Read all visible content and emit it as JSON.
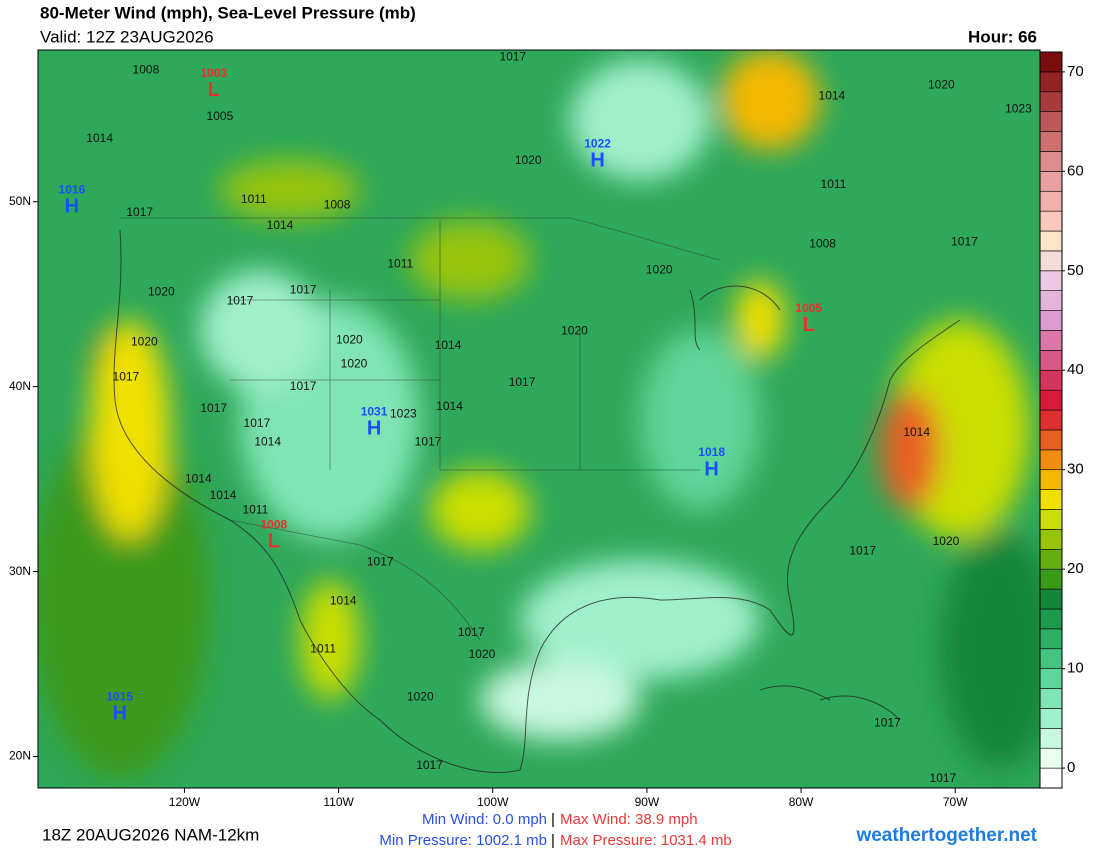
{
  "header": {
    "title": "80-Meter Wind (mph), Sea-Level Pressure (mb)",
    "valid": "Valid: 12Z 23AUG2026",
    "hour": "Hour: 66"
  },
  "map": {
    "xlim": [
      -129.5,
      -64.5
    ],
    "ylim": [
      18.3,
      58.2
    ],
    "xticks": [
      {
        "value": -120,
        "label": "120W"
      },
      {
        "value": -110,
        "label": "110W"
      },
      {
        "value": -100,
        "label": "100W"
      },
      {
        "value": -90,
        "label": "90W"
      },
      {
        "value": -80,
        "label": "80W"
      },
      {
        "value": -70,
        "label": "70W"
      }
    ],
    "yticks": [
      {
        "value": 20,
        "label": "20N"
      },
      {
        "value": 30,
        "label": "30N"
      },
      {
        "value": 40,
        "label": "40N"
      },
      {
        "value": 50,
        "label": "50N"
      }
    ],
    "pressure_centers": [
      {
        "symbol": "L",
        "value": "1003",
        "lon": -118.1,
        "lat": 56.1
      },
      {
        "symbol": "H",
        "value": "1022",
        "lon": -93.2,
        "lat": 52.3
      },
      {
        "symbol": "H",
        "value": "1016",
        "lon": -127.3,
        "lat": 49.8
      },
      {
        "symbol": "H",
        "value": "1031",
        "lon": -107.7,
        "lat": 37.8
      },
      {
        "symbol": "H",
        "value": "1018",
        "lon": -85.8,
        "lat": 35.6
      },
      {
        "symbol": "L",
        "value": "1005",
        "lon": -79.5,
        "lat": 43.4
      },
      {
        "symbol": "L",
        "value": "1008",
        "lon": -114.2,
        "lat": 31.7
      },
      {
        "symbol": "H",
        "value": "1015",
        "lon": -124.2,
        "lat": 22.4
      }
    ],
    "isobar_labels": [
      {
        "value": "1008",
        "lon": -122.5,
        "lat": 57.1
      },
      {
        "value": "1005",
        "lon": -117.7,
        "lat": 54.6
      },
      {
        "value": "1014",
        "lon": -125.5,
        "lat": 53.4
      },
      {
        "value": "1017",
        "lon": -98.7,
        "lat": 57.8
      },
      {
        "value": "1014",
        "lon": -78.0,
        "lat": 55.7
      },
      {
        "value": "1020",
        "lon": -70.9,
        "lat": 56.3
      },
      {
        "value": "1023",
        "lon": -65.9,
        "lat": 55.0
      },
      {
        "value": "1020",
        "lon": -97.7,
        "lat": 52.2
      },
      {
        "value": "1011",
        "lon": -77.9,
        "lat": 50.9
      },
      {
        "value": "1017",
        "lon": -122.9,
        "lat": 49.4
      },
      {
        "value": "1011",
        "lon": -115.5,
        "lat": 50.1
      },
      {
        "value": "1014",
        "lon": -113.8,
        "lat": 48.7
      },
      {
        "value": "1008",
        "lon": -110.1,
        "lat": 49.8
      },
      {
        "value": "1011",
        "lon": -106.0,
        "lat": 46.6
      },
      {
        "value": "1020",
        "lon": -89.2,
        "lat": 46.3
      },
      {
        "value": "1008",
        "lon": -78.6,
        "lat": 47.7
      },
      {
        "value": "1017",
        "lon": -69.4,
        "lat": 47.8
      },
      {
        "value": "1020",
        "lon": -121.5,
        "lat": 45.1
      },
      {
        "value": "1017",
        "lon": -116.4,
        "lat": 44.6
      },
      {
        "value": "1017",
        "lon": -112.3,
        "lat": 45.2
      },
      {
        "value": "1020",
        "lon": -94.7,
        "lat": 43.0
      },
      {
        "value": "1020",
        "lon": -122.6,
        "lat": 42.4
      },
      {
        "value": "1020",
        "lon": -109.3,
        "lat": 42.5
      },
      {
        "value": "1020",
        "lon": -109.0,
        "lat": 41.2
      },
      {
        "value": "1014",
        "lon": -102.9,
        "lat": 42.2
      },
      {
        "value": "1017",
        "lon": -123.8,
        "lat": 40.5
      },
      {
        "value": "1017",
        "lon": -112.3,
        "lat": 40.0
      },
      {
        "value": "1017",
        "lon": -98.1,
        "lat": 40.2
      },
      {
        "value": "1017",
        "lon": -118.1,
        "lat": 38.8
      },
      {
        "value": "1017",
        "lon": -115.3,
        "lat": 38.0
      },
      {
        "value": "1023",
        "lon": -105.8,
        "lat": 38.5
      },
      {
        "value": "1014",
        "lon": -102.8,
        "lat": 38.9
      },
      {
        "value": "1014",
        "lon": -114.6,
        "lat": 37.0
      },
      {
        "value": "1017",
        "lon": -104.2,
        "lat": 37.0
      },
      {
        "value": "1014",
        "lon": -72.5,
        "lat": 37.5
      },
      {
        "value": "1014",
        "lon": -119.1,
        "lat": 35.0
      },
      {
        "value": "1014",
        "lon": -117.5,
        "lat": 34.1
      },
      {
        "value": "1011",
        "lon": -115.4,
        "lat": 33.3
      },
      {
        "value": "1017",
        "lon": -107.3,
        "lat": 30.5
      },
      {
        "value": "1017",
        "lon": -76.0,
        "lat": 31.1
      },
      {
        "value": "1020",
        "lon": -70.6,
        "lat": 31.6
      },
      {
        "value": "1014",
        "lon": -109.7,
        "lat": 28.4
      },
      {
        "value": "1017",
        "lon": -101.4,
        "lat": 26.7
      },
      {
        "value": "1011",
        "lon": -111.0,
        "lat": 25.8
      },
      {
        "value": "1020",
        "lon": -100.7,
        "lat": 25.5
      },
      {
        "value": "1020",
        "lon": -104.7,
        "lat": 23.2
      },
      {
        "value": "1017",
        "lon": -74.4,
        "lat": 21.8
      },
      {
        "value": "1017",
        "lon": -104.1,
        "lat": 19.5
      },
      {
        "value": "1017",
        "lon": -70.8,
        "lat": 18.8
      }
    ]
  },
  "colorbar": {
    "lim": [
      -2,
      72
    ],
    "step": 2,
    "ticks": [
      0,
      10,
      20,
      30,
      40,
      50,
      60,
      70
    ],
    "colors": [
      "#ffffff",
      "#e8fff0",
      "#c8f8e0",
      "#a0f0cc",
      "#80e4b4",
      "#5ed69a",
      "#44c47e",
      "#2eb064",
      "#1e9a4c",
      "#16863a",
      "#3a9a1a",
      "#64ae10",
      "#96c40a",
      "#cade06",
      "#f0e000",
      "#f4b800",
      "#f08c10",
      "#e86020",
      "#de3030",
      "#d81a3c",
      "#d43660",
      "#d85888",
      "#dc78a8",
      "#dc9cd0",
      "#e4b4dc",
      "#ecc8e4",
      "#f4dcd8",
      "#fce4c8",
      "#f8c8bc",
      "#f0b0ac",
      "#e8a0a0",
      "#dc8c8c",
      "#cc7070",
      "#bc5858",
      "#a83c3c",
      "#942424",
      "#7a0c0c"
    ]
  },
  "footer": {
    "run": "18Z 20AUG2026 NAM-12km",
    "min_wind": "Min Wind:  0.0 mph",
    "max_wind": "Max Wind: 38.9 mph",
    "min_pressure": "Min Pressure: 1002.1 mb",
    "max_pressure": "Max Pressure: 1031.4 mb",
    "separator": "|",
    "site": "weathertogether.net"
  }
}
